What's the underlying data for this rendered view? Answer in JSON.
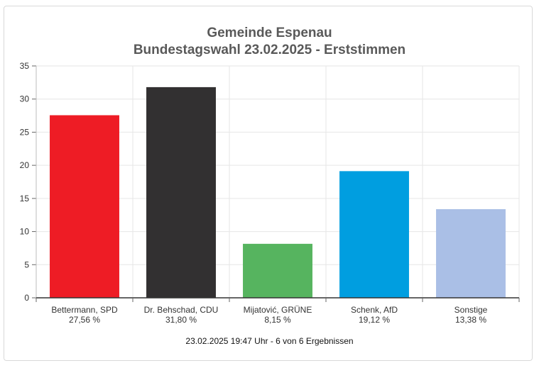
{
  "chart_data": {
    "type": "bar",
    "title": "Gemeinde Espenau",
    "subtitle": "Bundestagswahl 23.02.2025  - Erststimmen",
    "categories": [
      "Bettermann, SPD",
      "Dr. Behschad, CDU",
      "Mijatović, GRÜNE",
      "Schenk, AfD",
      "Sonstige"
    ],
    "value_labels": [
      "27,56 %",
      "31,80 %",
      "8,15 %",
      "19,12 %",
      "13,38 %"
    ],
    "values": [
      27.56,
      31.8,
      8.15,
      19.12,
      13.38
    ],
    "colors": [
      "#ee1c25",
      "#323031",
      "#56b45f",
      "#009ee0",
      "#aabfe6"
    ],
    "ylim": [
      0,
      35
    ],
    "yticks": [
      "0",
      "5",
      "10",
      "15",
      "20",
      "25",
      "30",
      "35"
    ],
    "xlabel": "",
    "ylabel": "",
    "grid": true,
    "footer": "23.02.2025 19:47 Uhr - 6 von 6 Ergebnissen"
  }
}
